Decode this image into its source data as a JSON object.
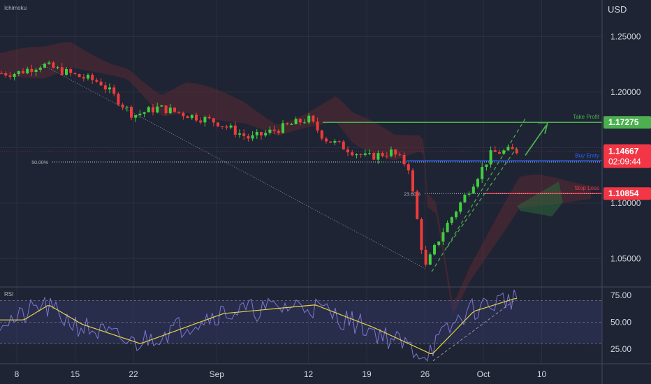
{
  "indicator_label": "Ichimoku",
  "rsi_label": "RSI",
  "currency": "USD",
  "colors": {
    "background": "#1e2433",
    "up": "#26a69a",
    "up_bright": "#3fcf3f",
    "down": "#ef3b3b",
    "take_profit": "#4caf50",
    "buy_entry": "#2962ff",
    "stop_loss": "#f23645",
    "rsi_line": "#7e75d6",
    "rsi_ma": "#e3d24a",
    "grid": "#2a3042",
    "text": "#d1d4dc"
  },
  "price_axis": {
    "ticks": [
      "1.25000",
      "1.20000",
      "1.15000",
      "1.10000",
      "1.05000"
    ],
    "tick_values": [
      1.25,
      1.2,
      1.15,
      1.1,
      1.05
    ]
  },
  "time_axis": {
    "labels": [
      "8",
      "15",
      "22",
      "Sep",
      "12",
      "19",
      "26",
      "Oct",
      "10"
    ]
  },
  "levels": {
    "take_profit": {
      "label": "Take Profit",
      "price": "1.17275"
    },
    "buy_entry": {
      "label": "Buy Entry",
      "price": "1.14667",
      "countdown": "02:09:44"
    },
    "stop_loss": {
      "label": "Stop Loss",
      "price": "1.10854"
    }
  },
  "fib_levels": [
    {
      "label": "50.00%",
      "value": 1.137
    },
    {
      "label": "23.60%",
      "value": 1.1085
    }
  ],
  "rsi_axis": {
    "ticks": [
      "75.00",
      "50.00",
      "25.00"
    ],
    "tick_values": [
      75,
      50,
      25
    ],
    "upper_band": 70,
    "lower_band": 30
  },
  "chart_data": {
    "type": "candlestick",
    "y_range": [
      1.025,
      1.283
    ],
    "price_points": [
      {
        "date": "Aug 8",
        "value": 1.217
      },
      {
        "date": "Aug 11",
        "value": 1.225
      },
      {
        "date": "Aug 15",
        "value": 1.215
      },
      {
        "date": "Aug 18",
        "value": 1.209
      },
      {
        "date": "Aug 22",
        "value": 1.179
      },
      {
        "date": "Aug 25",
        "value": 1.186
      },
      {
        "date": "Sep 1",
        "value": 1.173
      },
      {
        "date": "Sep 5",
        "value": 1.158
      },
      {
        "date": "Sep 12",
        "value": 1.176
      },
      {
        "date": "Sep 14",
        "value": 1.158
      },
      {
        "date": "Sep 19",
        "value": 1.141
      },
      {
        "date": "Sep 22",
        "value": 1.146
      },
      {
        "date": "Sep 24",
        "value": 1.133
      },
      {
        "date": "Sep 26",
        "value": 1.041
      },
      {
        "date": "Sep 28",
        "value": 1.073
      },
      {
        "date": "Oct 1",
        "value": 1.109
      },
      {
        "date": "Oct 4",
        "value": 1.145
      },
      {
        "date": "Oct 6",
        "value": 1.147
      }
    ],
    "rsi_points": [
      {
        "date": "Aug 8",
        "value": 52
      },
      {
        "date": "Aug 11",
        "value": 66
      },
      {
        "date": "Aug 15",
        "value": 48
      },
      {
        "date": "Aug 22",
        "value": 30
      },
      {
        "date": "Sep 1",
        "value": 58
      },
      {
        "date": "Sep 12",
        "value": 66
      },
      {
        "date": "Sep 19",
        "value": 45
      },
      {
        "date": "Sep 26",
        "value": 20
      },
      {
        "date": "Oct 1",
        "value": 60
      },
      {
        "date": "Oct 6",
        "value": 72
      }
    ],
    "rsi_range": [
      12,
      82
    ]
  }
}
